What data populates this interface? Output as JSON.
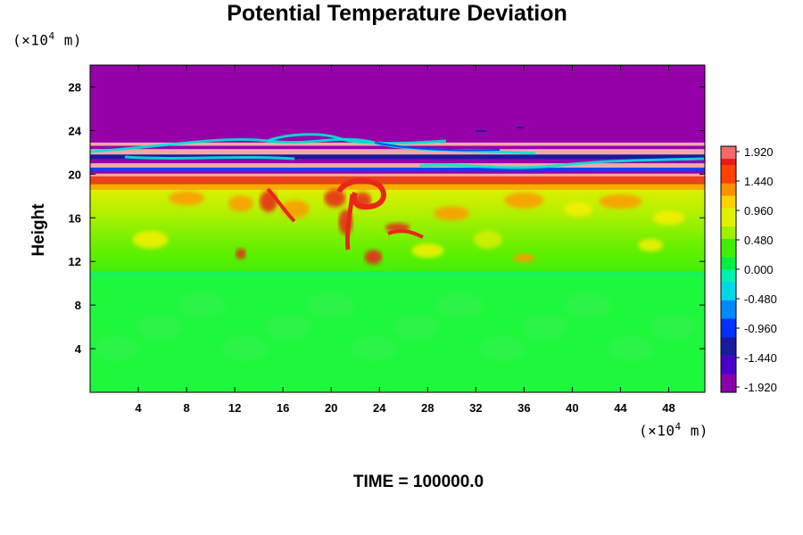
{
  "chart_data": {
    "type": "heatmap",
    "title": "Potential Temperature Deviation",
    "xlabel": "",
    "ylabel": "Height",
    "x_unit": "(×10⁴ m)",
    "y_unit": "(×10⁴ m)",
    "footer": "TIME = 100000.0",
    "x_ticks": [
      "4",
      "8",
      "12",
      "16",
      "20",
      "24",
      "28",
      "32",
      "36",
      "40",
      "44",
      "48"
    ],
    "y_ticks": [
      "4",
      "8",
      "12",
      "16",
      "20",
      "24",
      "28"
    ],
    "xlim": [
      0,
      51
    ],
    "ylim": [
      0,
      30
    ],
    "colorbar_labels": [
      "1.920",
      "1.440",
      "0.960",
      "0.480",
      "0.000",
      "-0.480",
      "-0.960",
      "-1.440",
      "-1.920"
    ],
    "colorbar_range": [
      -1.92,
      1.92
    ],
    "colors": {
      "upper": "#9500a8",
      "pink": "#f2a8a8",
      "red": "#e8261a",
      "orange": "#ff9a00",
      "yellow": "#f7f000",
      "yellow_green": "#c8f000",
      "green": "#3cf000",
      "lower_green": "#1ef83c",
      "cyan": "#00e8d0",
      "blue": "#0044ff",
      "dark_blue": "#1a1aa0"
    },
    "grid": false
  }
}
